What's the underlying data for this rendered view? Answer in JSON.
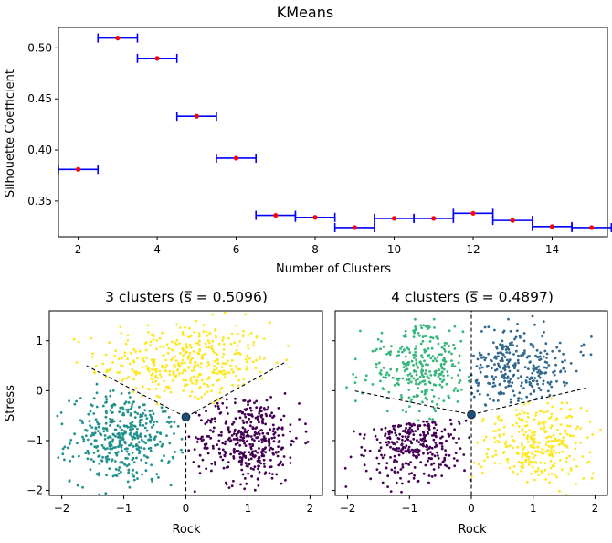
{
  "chart_data": [
    {
      "type": "errorbar",
      "title": "KMeans",
      "xlabel": "Number of Clusters",
      "ylabel": "Silhouette Coefficient",
      "xlim": [
        1.5,
        15.4
      ],
      "ylim": [
        0.315,
        0.52
      ],
      "xticks": [
        "2",
        "4",
        "6",
        "8",
        "10",
        "12",
        "14"
      ],
      "yticks": [
        "0.35",
        "0.40",
        "0.45",
        "0.50"
      ],
      "marker_color": "#ff0000",
      "errorbar_color": "#0000ff",
      "series": [
        {
          "points": [
            {
              "x": 2,
              "y": 0.381,
              "xerr": 0.5
            },
            {
              "x": 3,
              "y": 0.5096,
              "xerr": 0.5
            },
            {
              "x": 4,
              "y": 0.4897,
              "xerr": 0.5
            },
            {
              "x": 5,
              "y": 0.433,
              "xerr": 0.5
            },
            {
              "x": 6,
              "y": 0.392,
              "xerr": 0.5
            },
            {
              "x": 7,
              "y": 0.336,
              "xerr": 0.5
            },
            {
              "x": 8,
              "y": 0.334,
              "xerr": 0.5
            },
            {
              "x": 9,
              "y": 0.324,
              "xerr": 0.5
            },
            {
              "x": 10,
              "y": 0.333,
              "xerr": 0.5
            },
            {
              "x": 11,
              "y": 0.333,
              "xerr": 0.5
            },
            {
              "x": 12,
              "y": 0.338,
              "xerr": 0.5
            },
            {
              "x": 13,
              "y": 0.331,
              "xerr": 0.5
            },
            {
              "x": 14,
              "y": 0.325,
              "xerr": 0.5
            },
            {
              "x": 15,
              "y": 0.324,
              "xerr": 0.5
            }
          ]
        }
      ]
    },
    {
      "type": "scatter",
      "title": "3 clusters (s̅ = 0.5096)",
      "xlabel": "Rock",
      "ylabel": "Stress",
      "xlim": [
        -2.2,
        2.2
      ],
      "ylim": [
        -2.1,
        1.6
      ],
      "xticks": [
        "−2",
        "−1",
        "0",
        "1",
        "2"
      ],
      "yticks": [
        "−2",
        "−1",
        "0",
        "1"
      ],
      "point_count_per_cluster": 400,
      "clusters": [
        {
          "color": "#fde725",
          "center": [
            0.0,
            0.55
          ],
          "spread": [
            0.7,
            0.42
          ],
          "angle_range": [
            30,
            150
          ]
        },
        {
          "color": "#21918c",
          "center": [
            -1.0,
            -0.95
          ],
          "spread": [
            0.42,
            0.45
          ],
          "angle_range": [
            150,
            270
          ]
        },
        {
          "color": "#440154",
          "center": [
            1.0,
            -0.95
          ],
          "spread": [
            0.42,
            0.45
          ],
          "angle_range": [
            -90,
            30
          ]
        }
      ],
      "boundaries": [
        {
          "x1": 0,
          "y1": -0.53,
          "x2": -1.6,
          "y2": 0.5
        },
        {
          "x1": 0,
          "y1": -0.53,
          "x2": 1.6,
          "y2": 0.57
        },
        {
          "x1": 0,
          "y1": -0.53,
          "x2": 0,
          "y2": -2.1
        }
      ],
      "centroid": {
        "x": 0,
        "y": -0.53,
        "color": "#1f4e79"
      }
    },
    {
      "type": "scatter",
      "title": "4 clusters (s̅ = 0.4897)",
      "xlabel": "Rock",
      "ylabel": "",
      "xlim": [
        -2.2,
        2.2
      ],
      "ylim": [
        -2.1,
        1.6
      ],
      "xticks": [
        "−2",
        "−1",
        "0",
        "1",
        "2"
      ],
      "yticks": [],
      "point_count_per_cluster": 300,
      "clusters": [
        {
          "color": "#35b779",
          "center": [
            -0.85,
            0.45
          ],
          "spread": [
            0.45,
            0.42
          ],
          "angle_range": [
            90,
            190
          ]
        },
        {
          "color": "#31688e",
          "center": [
            0.75,
            0.45
          ],
          "spread": [
            0.45,
            0.42
          ],
          "angle_range": [
            15,
            90
          ]
        },
        {
          "color": "#440154",
          "center": [
            -0.95,
            -0.95
          ],
          "spread": [
            0.42,
            0.45
          ],
          "angle_range": [
            190,
            270
          ]
        },
        {
          "color": "#fde725",
          "center": [
            1.0,
            -1.0
          ],
          "spread": [
            0.42,
            0.45
          ],
          "angle_range": [
            -90,
            15
          ]
        }
      ],
      "boundaries": [
        {
          "x1": 0,
          "y1": -0.48,
          "x2": 0,
          "y2": 1.6
        },
        {
          "x1": 0,
          "y1": -0.48,
          "x2": -1.9,
          "y2": 0.0
        },
        {
          "x1": 0,
          "y1": -0.48,
          "x2": 1.85,
          "y2": 0.05
        },
        {
          "x1": 0,
          "y1": -0.48,
          "x2": 0,
          "y2": -2.1
        }
      ],
      "centroid": {
        "x": 0,
        "y": -0.48,
        "color": "#1f4e79"
      }
    }
  ]
}
